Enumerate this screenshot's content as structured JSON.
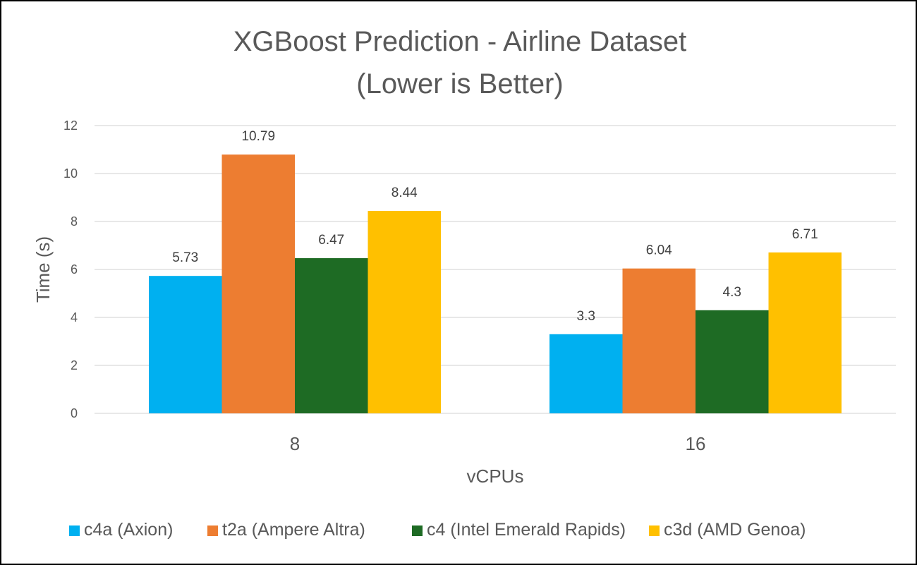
{
  "chart_data": {
    "type": "bar",
    "title": "XGBoost Prediction - Airline Dataset",
    "subtitle": "(Lower is Better)",
    "xlabel": "vCPUs",
    "ylabel": "Time (s)",
    "categories": [
      "8",
      "16"
    ],
    "ylim": [
      0,
      12
    ],
    "yticks": [
      0,
      2,
      4,
      6,
      8,
      10,
      12
    ],
    "grid": true,
    "legend_position": "bottom",
    "data_labels": true,
    "series": [
      {
        "name": "c4a (Axion)",
        "color": "#00B0F0",
        "values": [
          5.73,
          3.3
        ]
      },
      {
        "name": "t2a (Ampere Altra)",
        "color": "#ED7D31",
        "values": [
          10.79,
          6.04
        ]
      },
      {
        "name": "c4 (Intel Emerald Rapids)",
        "color": "#1E6B24",
        "values": [
          6.47,
          4.3
        ]
      },
      {
        "name": "c3d (AMD Genoa)",
        "color": "#FFC000",
        "values": [
          8.44,
          6.71
        ]
      }
    ]
  }
}
